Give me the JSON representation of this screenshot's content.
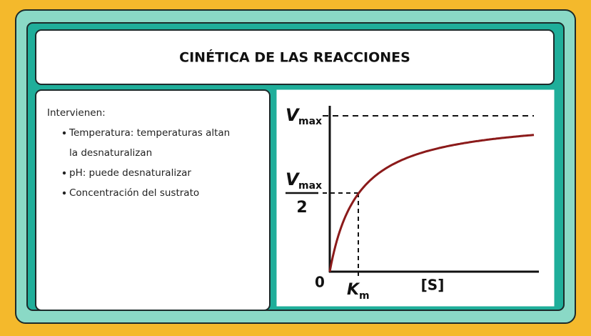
{
  "header": {
    "title": "CINÉTICA DE LAS REACCIONES"
  },
  "content": {
    "intro": "Intervienen:",
    "bullets": [
      [
        "Temperatura: temperaturas altan",
        "la desnaturalizan"
      ],
      [
        "pH: puede desnaturalizar"
      ],
      [
        "Concentración del sustrato"
      ]
    ]
  },
  "figure": {
    "vmax_symbol": "V",
    "vmax_sub": "max",
    "half_symbol": "V",
    "half_sub": "max",
    "half_denominator": "2",
    "origin": "0",
    "km_symbol": "K",
    "km_sub": "m",
    "x_label": "[S]"
  }
}
